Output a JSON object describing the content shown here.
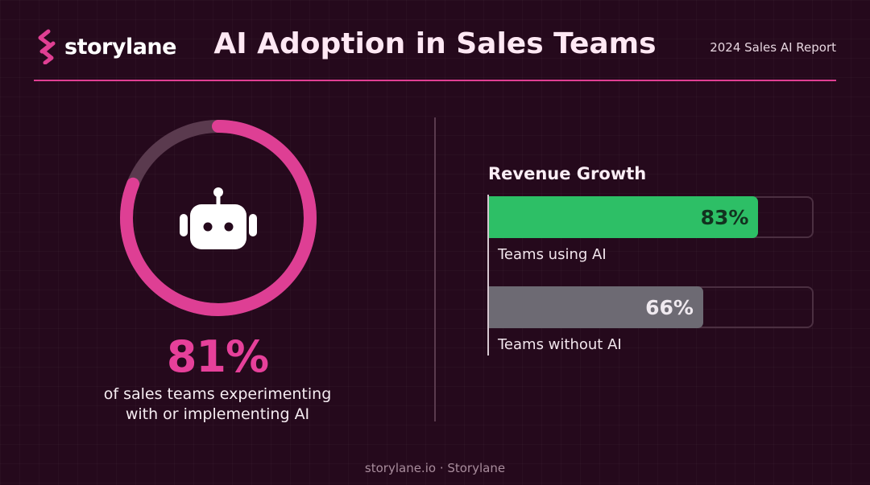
{
  "brand": {
    "name": "storylane",
    "accent": "#e03f93"
  },
  "header": {
    "title": "AI Adoption in Sales Teams",
    "report": "2024 Sales AI Report"
  },
  "adoption": {
    "percent_label": "81%",
    "value": 81,
    "caption_line1": "of sales teams experimenting",
    "caption_line2": "with or implementing AI",
    "icon": "robot-icon",
    "ring_color": "#de3f94",
    "track_color": "#5a3a4e"
  },
  "chart_data": {
    "type": "bar",
    "title": "Revenue Growth",
    "categories": [
      "Teams using AI",
      "Teams without AI"
    ],
    "values": [
      83,
      66
    ],
    "value_labels": [
      "83%",
      "66%"
    ],
    "colors": [
      "#2dbf66",
      "#6d6a73"
    ],
    "label_colors": [
      "#12321f",
      "#efe9ef"
    ],
    "ylim": [
      0,
      100
    ],
    "orientation": "horizontal",
    "grid": false
  },
  "footer": {
    "text": "storylane.io · Storylane"
  }
}
